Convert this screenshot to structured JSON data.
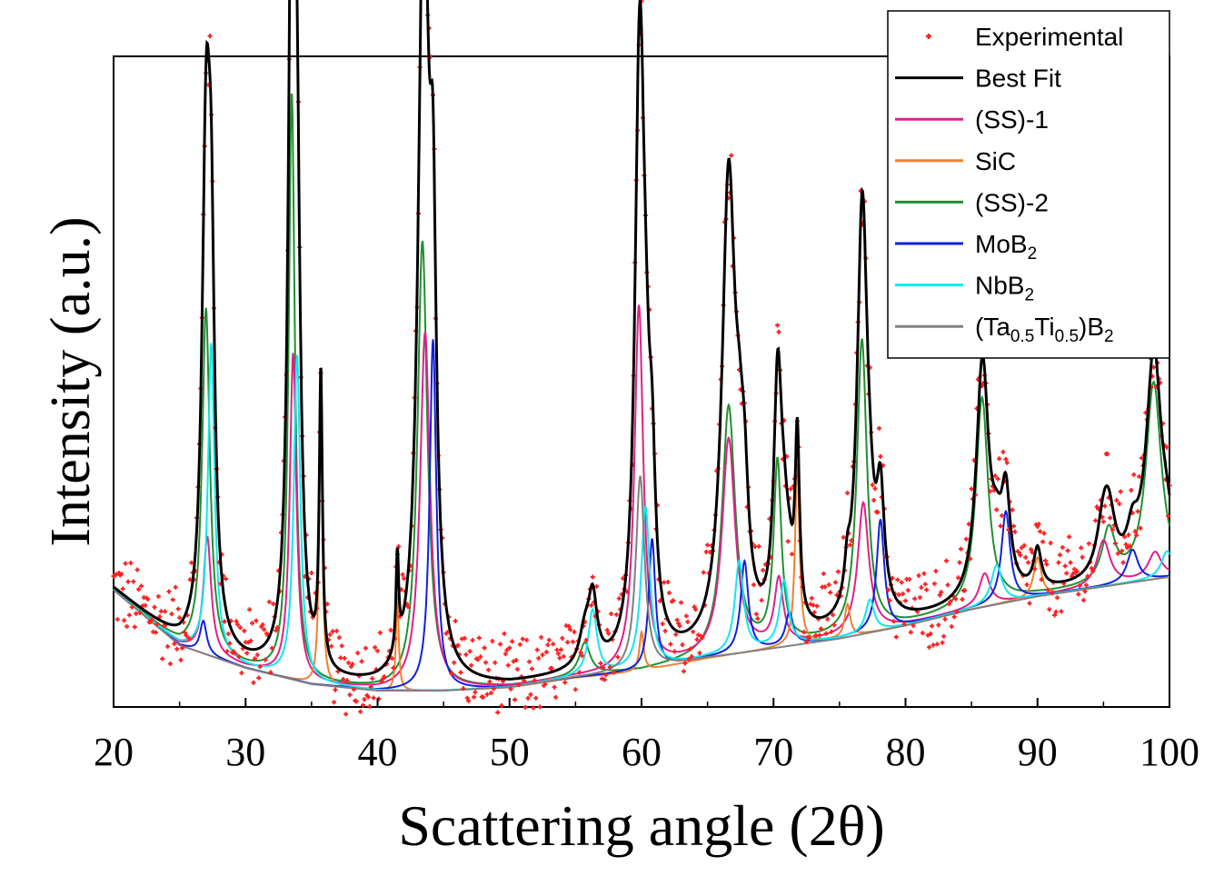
{
  "chart_data": {
    "type": "line",
    "xlabel": "Scattering angle (2θ)",
    "ylabel": "Intensity (a.u.)",
    "xlim": [
      20,
      100
    ],
    "ylim": [
      0,
      100
    ],
    "y_ticks_labeled": false,
    "grid": false,
    "legend_position": "top-right",
    "x_ticks": [
      20,
      30,
      40,
      50,
      60,
      70,
      80,
      90,
      100
    ],
    "x_tick_labels": [
      "20",
      "30",
      "40",
      "50",
      "60",
      "70",
      "80",
      "90",
      "100"
    ],
    "legend": [
      {
        "label": "Experimental",
        "sub": [],
        "color": "#ff2020",
        "kind": "marker"
      },
      {
        "label": "Best Fit",
        "sub": [],
        "color": "#000000",
        "kind": "line"
      },
      {
        "label": "(SS)-1",
        "sub": [],
        "color": "#e0208a",
        "kind": "line"
      },
      {
        "label": "SiC",
        "sub": [],
        "color": "#f08030",
        "kind": "line"
      },
      {
        "label": "(SS)-2",
        "sub": [],
        "color": "#209030",
        "kind": "line"
      },
      {
        "label": "MoB",
        "sub": [
          {
            "t": "2",
            "sub": true
          }
        ],
        "color": "#1020e0",
        "kind": "line"
      },
      {
        "label": "NbB",
        "sub": [
          {
            "t": "2",
            "sub": true
          }
        ],
        "color": "#10e8f0",
        "kind": "line"
      },
      {
        "label": "(Ta",
        "sub": [
          {
            "t": "0.5",
            "sub": true
          },
          {
            "t": "Ti",
            "sub": false
          },
          {
            "t": "0.5",
            "sub": true
          },
          {
            "t": ")B",
            "sub": false
          },
          {
            "t": "2",
            "sub": true
          }
        ],
        "color": "#808080",
        "kind": "line"
      }
    ],
    "background": [
      [
        20,
        18
      ],
      [
        25,
        9.5
      ],
      [
        30,
        6
      ],
      [
        35,
        3.5
      ],
      [
        40,
        2.5
      ],
      [
        45,
        2.5
      ],
      [
        50,
        3
      ],
      [
        55,
        4.5
      ],
      [
        60,
        5.5
      ],
      [
        65,
        7.5
      ],
      [
        70,
        9
      ],
      [
        75,
        10.5
      ],
      [
        80,
        12.5
      ],
      [
        85,
        15
      ],
      [
        90,
        17
      ],
      [
        95,
        18.5
      ],
      [
        100,
        20
      ]
    ],
    "series": [
      {
        "name": "(SS)-2",
        "color": "#209030",
        "peaks": [
          [
            27.0,
            53,
            0.35
          ],
          [
            33.5,
            90,
            0.28
          ],
          [
            43.4,
            69,
            0.45
          ],
          [
            55.7,
            5,
            0.5
          ],
          [
            66.6,
            38,
            0.6
          ],
          [
            70.3,
            28,
            0.35
          ],
          [
            76.7,
            45,
            0.45
          ],
          [
            85.8,
            32,
            0.55
          ],
          [
            95.4,
            8,
            0.6
          ],
          [
            98.8,
            30,
            0.7
          ]
        ]
      },
      {
        "name": "(SS)-1",
        "color": "#e0208a",
        "peaks": [
          [
            27.1,
            18,
            0.35
          ],
          [
            33.6,
            50,
            0.3
          ],
          [
            43.6,
            55,
            0.45
          ],
          [
            59.8,
            56,
            0.4
          ],
          [
            66.6,
            33,
            0.6
          ],
          [
            70.4,
            10,
            0.4
          ],
          [
            76.8,
            20,
            0.5
          ],
          [
            86.0,
            5,
            0.5
          ],
          [
            95.0,
            7,
            0.6
          ],
          [
            98.9,
            4,
            0.6
          ]
        ]
      },
      {
        "name": "SiC",
        "color": "#f08030",
        "peaks": [
          [
            35.7,
            45,
            0.14
          ],
          [
            41.5,
            15,
            0.12
          ],
          [
            60.0,
            6,
            0.2
          ],
          [
            71.8,
            28,
            0.2
          ],
          [
            75.6,
            5,
            0.25
          ],
          [
            90.0,
            6,
            0.35
          ]
        ]
      },
      {
        "name": "MoB₂",
        "color": "#1020e0",
        "peaks": [
          [
            26.8,
            5,
            0.3
          ],
          [
            44.2,
            54,
            0.3
          ],
          [
            60.8,
            20,
            0.3
          ],
          [
            67.8,
            14,
            0.35
          ],
          [
            71.2,
            5,
            0.35
          ],
          [
            78.1,
            17,
            0.35
          ],
          [
            87.6,
            14,
            0.4
          ],
          [
            97.2,
            5,
            0.5
          ]
        ]
      },
      {
        "name": "NbB₂",
        "color": "#10e8f0",
        "peaks": [
          [
            27.4,
            48,
            0.3
          ],
          [
            33.9,
            50,
            0.3
          ],
          [
            56.3,
            10,
            0.4
          ],
          [
            60.3,
            25,
            0.4
          ],
          [
            67.4,
            14,
            0.4
          ],
          [
            70.8,
            10,
            0.4
          ],
          [
            77.3,
            5,
            0.4
          ],
          [
            86.9,
            6,
            0.5
          ],
          [
            99.8,
            4,
            0.5
          ]
        ]
      },
      {
        "name": "(Ta₀.₅Ti₀.₅)B₂",
        "color": "#808080",
        "peaks": [
          [
            59.9,
            30,
            0.4
          ]
        ]
      }
    ],
    "best_fit_color": "#000000",
    "experimental_color": "#ff2020",
    "experimental_noise": 4.5,
    "experimental_step": 0.1
  }
}
